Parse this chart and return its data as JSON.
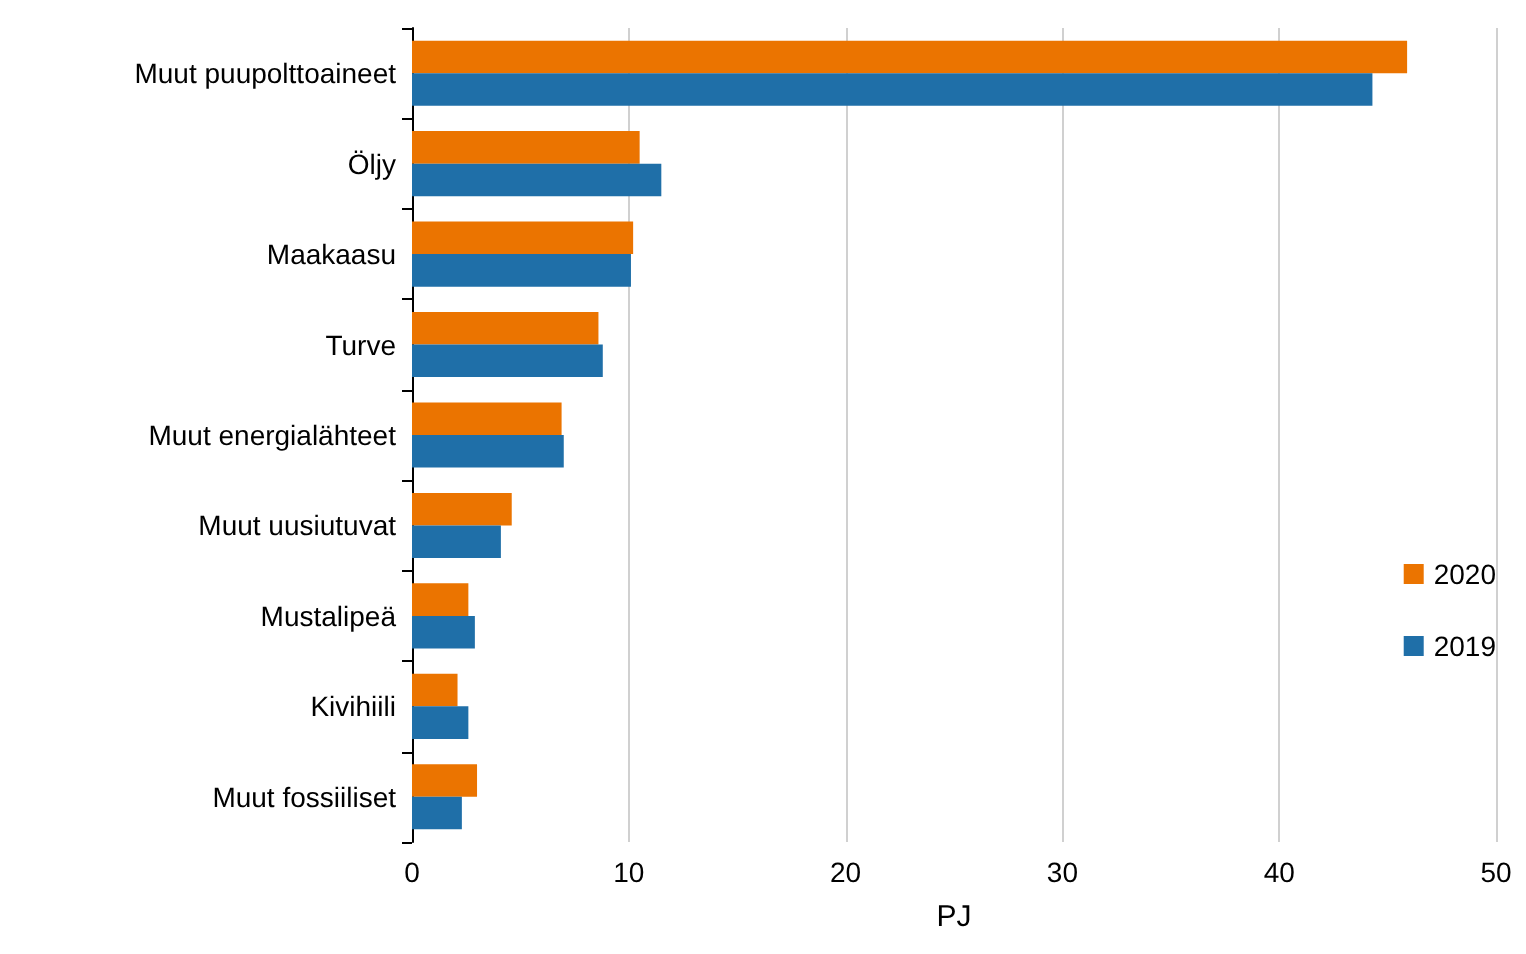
{
  "chart_data": {
    "type": "bar",
    "orientation": "horizontal",
    "xlabel": "PJ",
    "categories": [
      "Muut puupolttoaineet",
      "Öljy",
      "Maakaasu",
      "Turve",
      "Muut energialähteet",
      "Muut uusiutuvat",
      "Mustalipeä",
      "Kivihiili",
      "Muut fossiiliset"
    ],
    "series": [
      {
        "name": "2020",
        "color": "#eb7400",
        "values": [
          45.9,
          10.5,
          10.2,
          8.6,
          6.9,
          4.6,
          2.6,
          2.1,
          3.0
        ]
      },
      {
        "name": "2019",
        "color": "#1f6fa8",
        "values": [
          44.3,
          11.5,
          10.1,
          8.8,
          7.0,
          4.1,
          2.9,
          2.6,
          2.3
        ]
      }
    ],
    "xlim": [
      0,
      50
    ],
    "xticks": [
      0,
      10,
      20,
      30,
      40,
      50
    ],
    "grid": "x",
    "legend": "right"
  }
}
